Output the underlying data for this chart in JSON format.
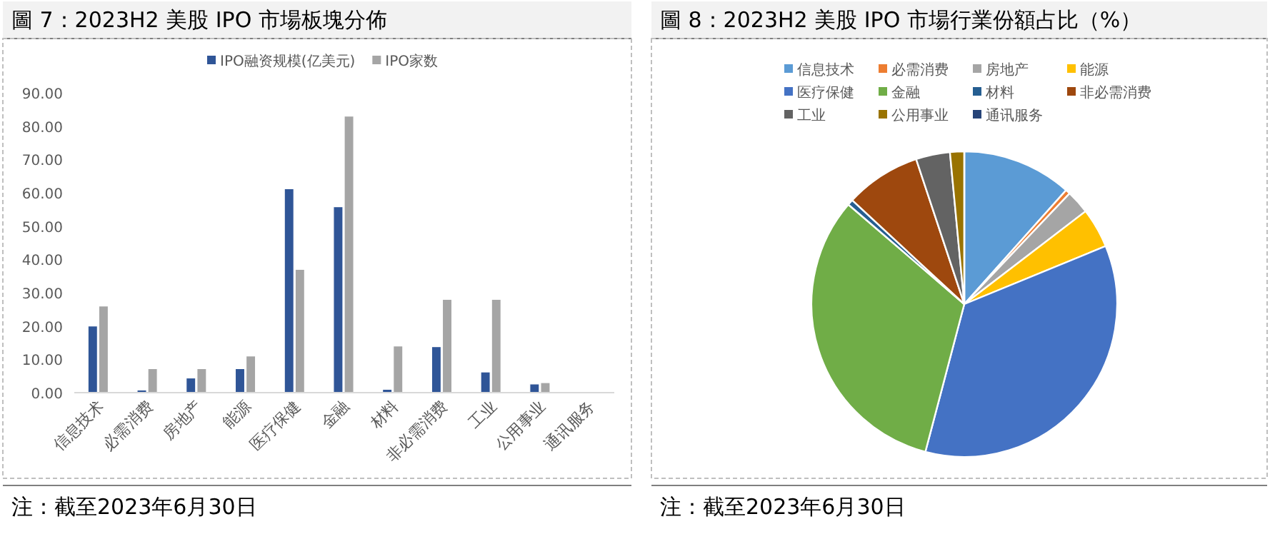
{
  "chart_data": [
    {
      "type": "bar",
      "title": "圖 7：2023H2 美股 IPO 市場板塊分佈",
      "categories": [
        "信息技术",
        "必需消费",
        "房地产",
        "能源",
        "医疗保健",
        "金融",
        "材料",
        "非必需消费",
        "工业",
        "公用事业",
        "通讯服务"
      ],
      "series": [
        {
          "name": "IPO融资规模(亿美元)",
          "color": "#2f5597",
          "values": [
            20,
            0.8,
            4.4,
            7.2,
            61.2,
            55.8,
            1,
            13.8,
            6.2,
            2.6,
            0
          ]
        },
        {
          "name": "IPO家数",
          "color": "#a5a5a5",
          "values": [
            26,
            7.2,
            7.2,
            11,
            37,
            83,
            14,
            28,
            28,
            3,
            0
          ]
        }
      ],
      "ylim": [
        0,
        90
      ],
      "yticks": [
        {
          "value": 0,
          "label": "0.00"
        },
        {
          "value": 10,
          "label": "10.00"
        },
        {
          "value": 20,
          "label": "20.00"
        },
        {
          "value": 30,
          "label": "30.00"
        },
        {
          "value": 40,
          "label": "40.00"
        },
        {
          "value": 50,
          "label": "50.00"
        },
        {
          "value": 60,
          "label": "60.00"
        },
        {
          "value": 70,
          "label": "70.00"
        },
        {
          "value": 80,
          "label": "80.00"
        },
        {
          "value": 90,
          "label": "90.00"
        }
      ],
      "legend": "top",
      "annotations": [
        "注：截至2023年6月30日"
      ]
    },
    {
      "type": "pie",
      "title": "圖 8：2023H2 美股 IPO 市場行業份額占比（%）",
      "categories": [
        "信息技术",
        "必需消费",
        "房地产",
        "能源",
        "医疗保健",
        "金融",
        "材料",
        "非必需消费",
        "工业",
        "公用事业",
        "通讯服务"
      ],
      "values": [
        11.6,
        0.5,
        2.5,
        4.2,
        35.3,
        32.2,
        0.6,
        8.0,
        3.6,
        1.5,
        0
      ],
      "colors": [
        "#5b9bd5",
        "#ed7d31",
        "#a5a5a5",
        "#ffc000",
        "#4472c4",
        "#70ad47",
        "#255e91",
        "#9e480e",
        "#636363",
        "#997300",
        "#264478"
      ],
      "legend": "top",
      "annotations": [
        "注：截至2023年6月30日"
      ]
    }
  ]
}
